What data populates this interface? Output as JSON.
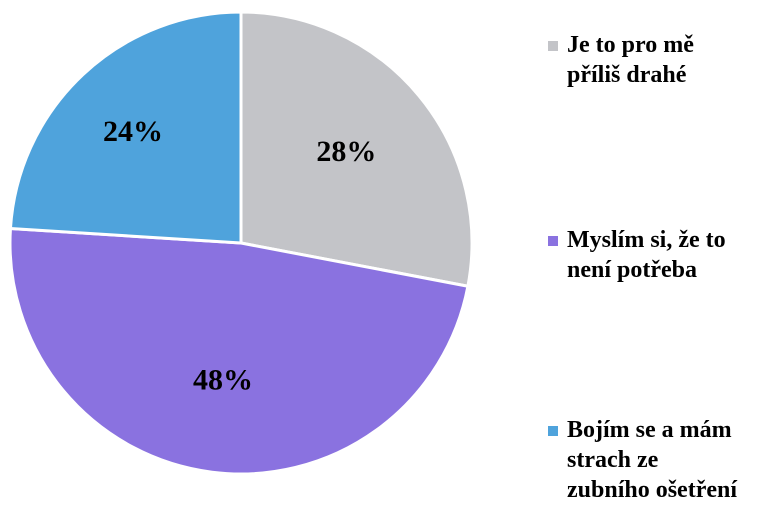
{
  "chart_data": {
    "type": "pie",
    "start_angle_deg": 0,
    "direction": "clockwise",
    "slices": [
      {
        "label": "Je to pro mě příliš drahé",
        "value": 28,
        "value_label": "28%",
        "color": "#c3c4c8"
      },
      {
        "label": "Myslím si, že to není potřeba",
        "value": 48,
        "value_label": "48%",
        "color": "#8a72e0"
      },
      {
        "label": "Bojím se a mám strach ze zubního ošetření",
        "value": 24,
        "value_label": "24%",
        "color": "#4fa3dc"
      }
    ],
    "legend_position": "right"
  },
  "legend": [
    {
      "line1": "Je to pro mě",
      "line2": "příliš drahé",
      "line3": ""
    },
    {
      "line1": "Myslím si, že to",
      "line2": "není potřeba",
      "line3": ""
    },
    {
      "line1": "Bojím se a mám",
      "line2": "strach ze",
      "line3": "zubního ošetření"
    }
  ]
}
